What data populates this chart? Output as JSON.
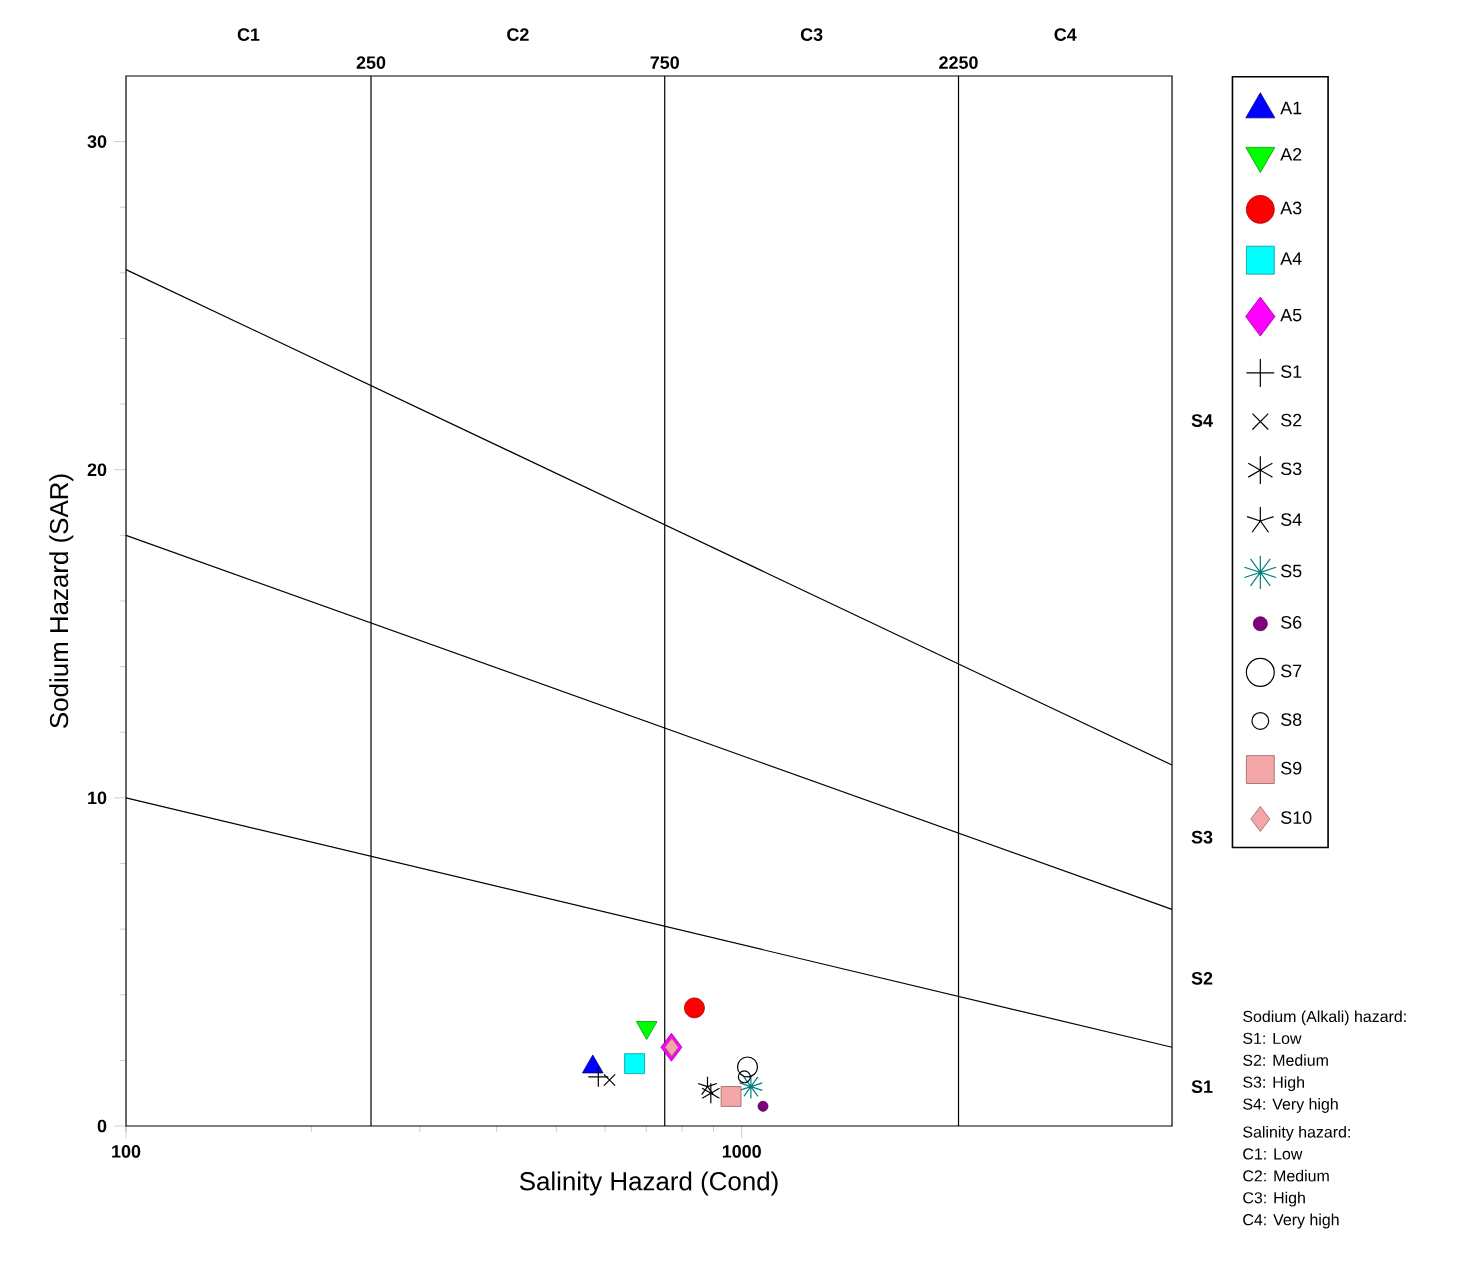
{
  "chart_data": {
    "type": "scatter",
    "xlabel": "Salinity Hazard (Cond)",
    "ylabel": "Sodium Hazard (SAR)",
    "log": "x",
    "xlim": [
      100,
      5000
    ],
    "xticks": [
      100,
      1000
    ],
    "ylim": [
      0,
      32
    ],
    "yticks": [
      0,
      10,
      20,
      30
    ],
    "ref_lines": [
      {
        "axis": "x",
        "value": 250,
        "label": "250",
        "color": "#000000"
      },
      {
        "axis": "x",
        "value": 750,
        "label": "750",
        "color": "#000000"
      },
      {
        "axis": "x",
        "value": 2250,
        "label": "2250",
        "color": "#000000"
      }
    ],
    "legend": "right",
    "series": [
      {
        "type": "line",
        "color": "#000000",
        "marker": "none",
        "x": [
          100,
          5000
        ],
        "values": [
          26.1,
          11.0
        ]
      },
      {
        "type": "line",
        "color": "#000000",
        "marker": "none",
        "x": [
          100,
          5000
        ],
        "values": [
          18.0,
          6.6
        ]
      },
      {
        "type": "line",
        "color": "#000000",
        "marker": "none",
        "x": [
          100,
          5000
        ],
        "values": [
          10.0,
          2.4
        ]
      },
      {
        "name": "A1",
        "color": "#0000ff",
        "marker": "triangle",
        "x": [
          573
        ],
        "values": [
          1.8
        ]
      },
      {
        "name": "A2",
        "color": "#00ff00",
        "marker": "triangle",
        "x": [
          701
        ],
        "values": [
          3.0
        ]
      },
      {
        "name": "A3",
        "color": "#ff0000",
        "marker": "circle",
        "x": [
          838
        ],
        "values": [
          3.6
        ]
      },
      {
        "name": "A4",
        "color": "#00ffff",
        "marker": "square",
        "x": [
          670
        ],
        "values": [
          1.9
        ]
      },
      {
        "name": "A5",
        "color": "#ff00ff",
        "marker": "diamond",
        "x": [
          769
        ],
        "values": [
          2.4
        ]
      },
      {
        "name": "S1",
        "color": "#000000",
        "marker": "cross",
        "x": [
          585
        ],
        "values": [
          1.5
        ]
      },
      {
        "name": "S2",
        "color": "#000000",
        "marker": "cross",
        "x": [
          610
        ],
        "values": [
          1.4
        ]
      },
      {
        "name": "S3",
        "color": "#000000",
        "marker": "cross",
        "x": [
          891
        ],
        "values": [
          1.0
        ]
      },
      {
        "name": "S4",
        "color": "#000000",
        "marker": "cross",
        "x": [
          880
        ],
        "values": [
          1.2
        ]
      },
      {
        "name": "S5",
        "color": "#008080",
        "marker": "cross",
        "x": [
          1035
        ],
        "values": [
          1.2
        ]
      },
      {
        "name": "S6",
        "color": "#800080",
        "marker": "circle",
        "x": [
          1083
        ],
        "values": [
          0.6
        ]
      },
      {
        "name": "S7",
        "color": "#000000",
        "marker": "circle",
        "x": [
          1022
        ],
        "values": [
          1.8
        ]
      },
      {
        "name": "S8",
        "color": "#000000",
        "marker": "circle",
        "x": [
          1010
        ],
        "values": [
          1.5
        ]
      },
      {
        "name": "S9",
        "color": "#f4a6a6",
        "marker": "square",
        "x": [
          961
        ],
        "values": [
          0.9
        ]
      },
      {
        "name": "S10",
        "color": "#f4a6a6",
        "marker": "diamond",
        "x": [
          770
        ],
        "values": [
          2.4
        ]
      }
    ],
    "annotations": [
      "C1",
      "C2",
      "C3",
      "C4",
      "S1",
      "S2",
      "S3",
      "S4",
      "Sodium (Alkali) hazard:",
      "S1: Low",
      "S2: Medium",
      "S3: High",
      "S4: Very high",
      "Salinity hazard:",
      "C1: Low",
      "C2: Medium",
      "C3: High",
      "C4: Very high"
    ]
  }
}
